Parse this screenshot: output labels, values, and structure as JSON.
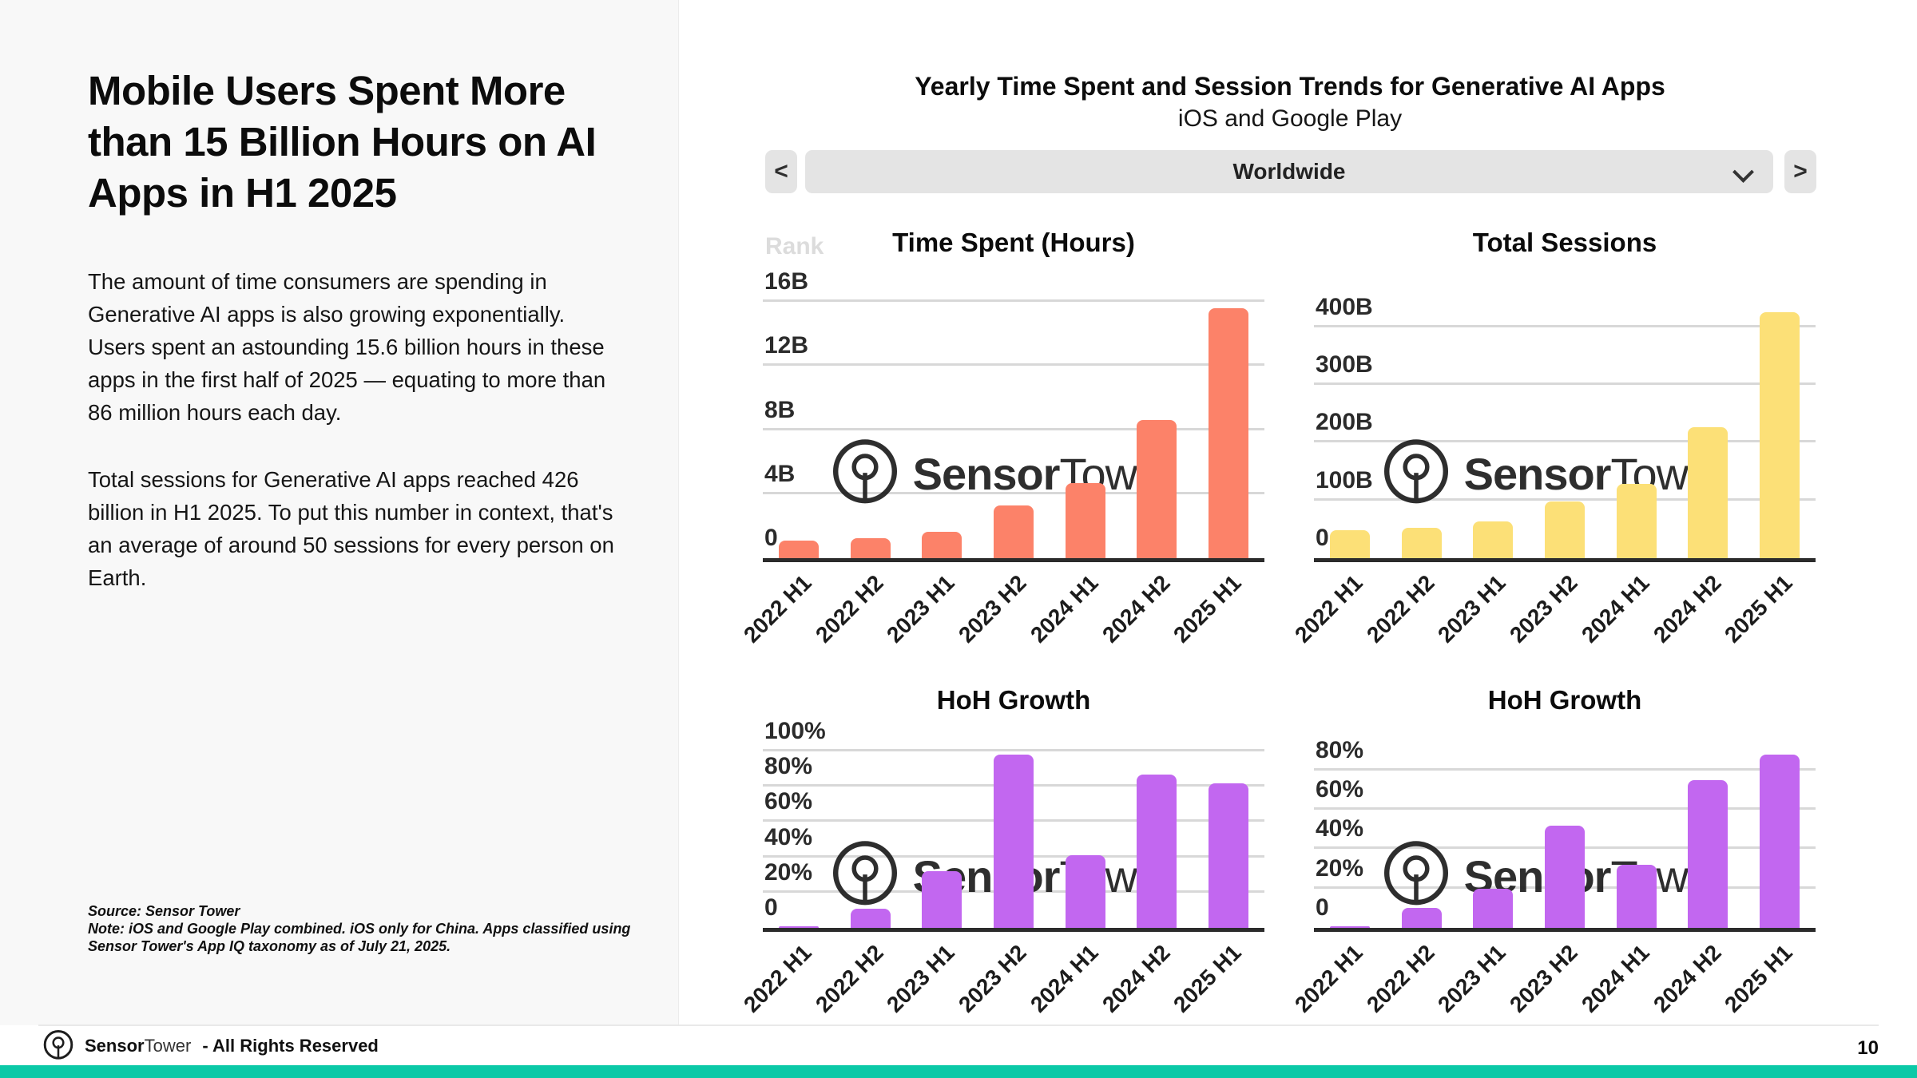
{
  "page": {
    "number": "10",
    "accent_teal": "#0bc9a7"
  },
  "left_panel": {
    "title": "Mobile Users Spent More than 15 Billion Hours on AI Apps in H1 2025",
    "paragraph1": "The amount of time consumers are spending in Generative AI apps is also growing exponentially. Users spent an astounding 15.6 billion hours in these apps in the first half of 2025 — equating to more than 86 million hours each day.",
    "paragraph2": "Total sessions for Generative AI apps reached 426 billion in H1 2025. To put this number in context, that's an average of around 50 sessions for every person on Earth.",
    "footnote_source": "Source: Sensor Tower",
    "footnote_note": "Note: iOS and Google Play combined. iOS only for China. Apps classified using Sensor Tower's App IQ taxonomy as of July 21, 2025."
  },
  "header": {
    "title": "Yearly Time Spent and Session Trends for Generative AI Apps",
    "subtitle": "iOS and Google Play",
    "region_selector": {
      "value": "Worldwide",
      "prev_label": "<",
      "next_label": ">"
    }
  },
  "ghost_label": "Rank",
  "watermark": {
    "brand_bold": "Sensor",
    "brand_light": "Tower"
  },
  "footer": {
    "brand_bold": "Sensor",
    "brand_light": "Tower",
    "rights": "- All Rights Reserved"
  },
  "chart_data": [
    {
      "type": "bar",
      "title": "Time Spent (Hours)",
      "categories": [
        "2022 H1",
        "2022 H2",
        "2023 H1",
        "2023 H2",
        "2024 H1",
        "2024 H2",
        "2025 H1"
      ],
      "values": [
        1.1,
        1.25,
        1.65,
        3.3,
        4.7,
        8.6,
        15.6
      ],
      "unit": "billion hours",
      "ylim": [
        0,
        16.4
      ],
      "yticks": [
        {
          "v": 0,
          "label": "0"
        },
        {
          "v": 4,
          "label": "4B"
        },
        {
          "v": 8,
          "label": "8B"
        },
        {
          "v": 12,
          "label": "12B"
        },
        {
          "v": 16,
          "label": "16B"
        }
      ],
      "grid": true,
      "color": "#fc8269"
    },
    {
      "type": "bar",
      "title": "Total Sessions",
      "categories": [
        "2022 H1",
        "2022 H2",
        "2023 H1",
        "2023 H2",
        "2024 H1",
        "2024 H2",
        "2025 H1"
      ],
      "values": [
        48,
        53,
        64,
        98,
        129,
        227,
        426
      ],
      "unit": "billion sessions",
      "ylim": [
        0,
        455
      ],
      "yticks": [
        {
          "v": 0,
          "label": "0"
        },
        {
          "v": 100,
          "label": "100B"
        },
        {
          "v": 200,
          "label": "200B"
        },
        {
          "v": 300,
          "label": "300B"
        },
        {
          "v": 400,
          "label": "400B"
        }
      ],
      "grid": true,
      "color": "#fce077"
    },
    {
      "type": "bar",
      "title": "HoH Growth",
      "categories": [
        "2022 H1",
        "2022 H2",
        "2023 H1",
        "2023 H2",
        "2024 H1",
        "2024 H2",
        "2025 H1"
      ],
      "values": [
        1,
        11,
        32,
        98,
        41,
        87,
        82
      ],
      "unit": "percent",
      "ylim": [
        0,
        105
      ],
      "yticks": [
        {
          "v": 0,
          "label": "0"
        },
        {
          "v": 20,
          "label": "20%"
        },
        {
          "v": 40,
          "label": "40%"
        },
        {
          "v": 60,
          "label": "60%"
        },
        {
          "v": 80,
          "label": "80%"
        },
        {
          "v": 100,
          "label": "100%"
        }
      ],
      "grid": true,
      "color": "#c267f0"
    },
    {
      "type": "bar",
      "title": "HoH Growth",
      "categories": [
        "2022 H1",
        "2022 H2",
        "2023 H1",
        "2023 H2",
        "2024 H1",
        "2024 H2",
        "2025 H1"
      ],
      "values": [
        1,
        10,
        20,
        52,
        32,
        75,
        88
      ],
      "unit": "percent",
      "ylim": [
        0,
        94
      ],
      "yticks": [
        {
          "v": 0,
          "label": "0"
        },
        {
          "v": 20,
          "label": "20%"
        },
        {
          "v": 40,
          "label": "40%"
        },
        {
          "v": 60,
          "label": "60%"
        },
        {
          "v": 80,
          "label": "80%"
        }
      ],
      "grid": true,
      "color": "#c267f0"
    }
  ]
}
